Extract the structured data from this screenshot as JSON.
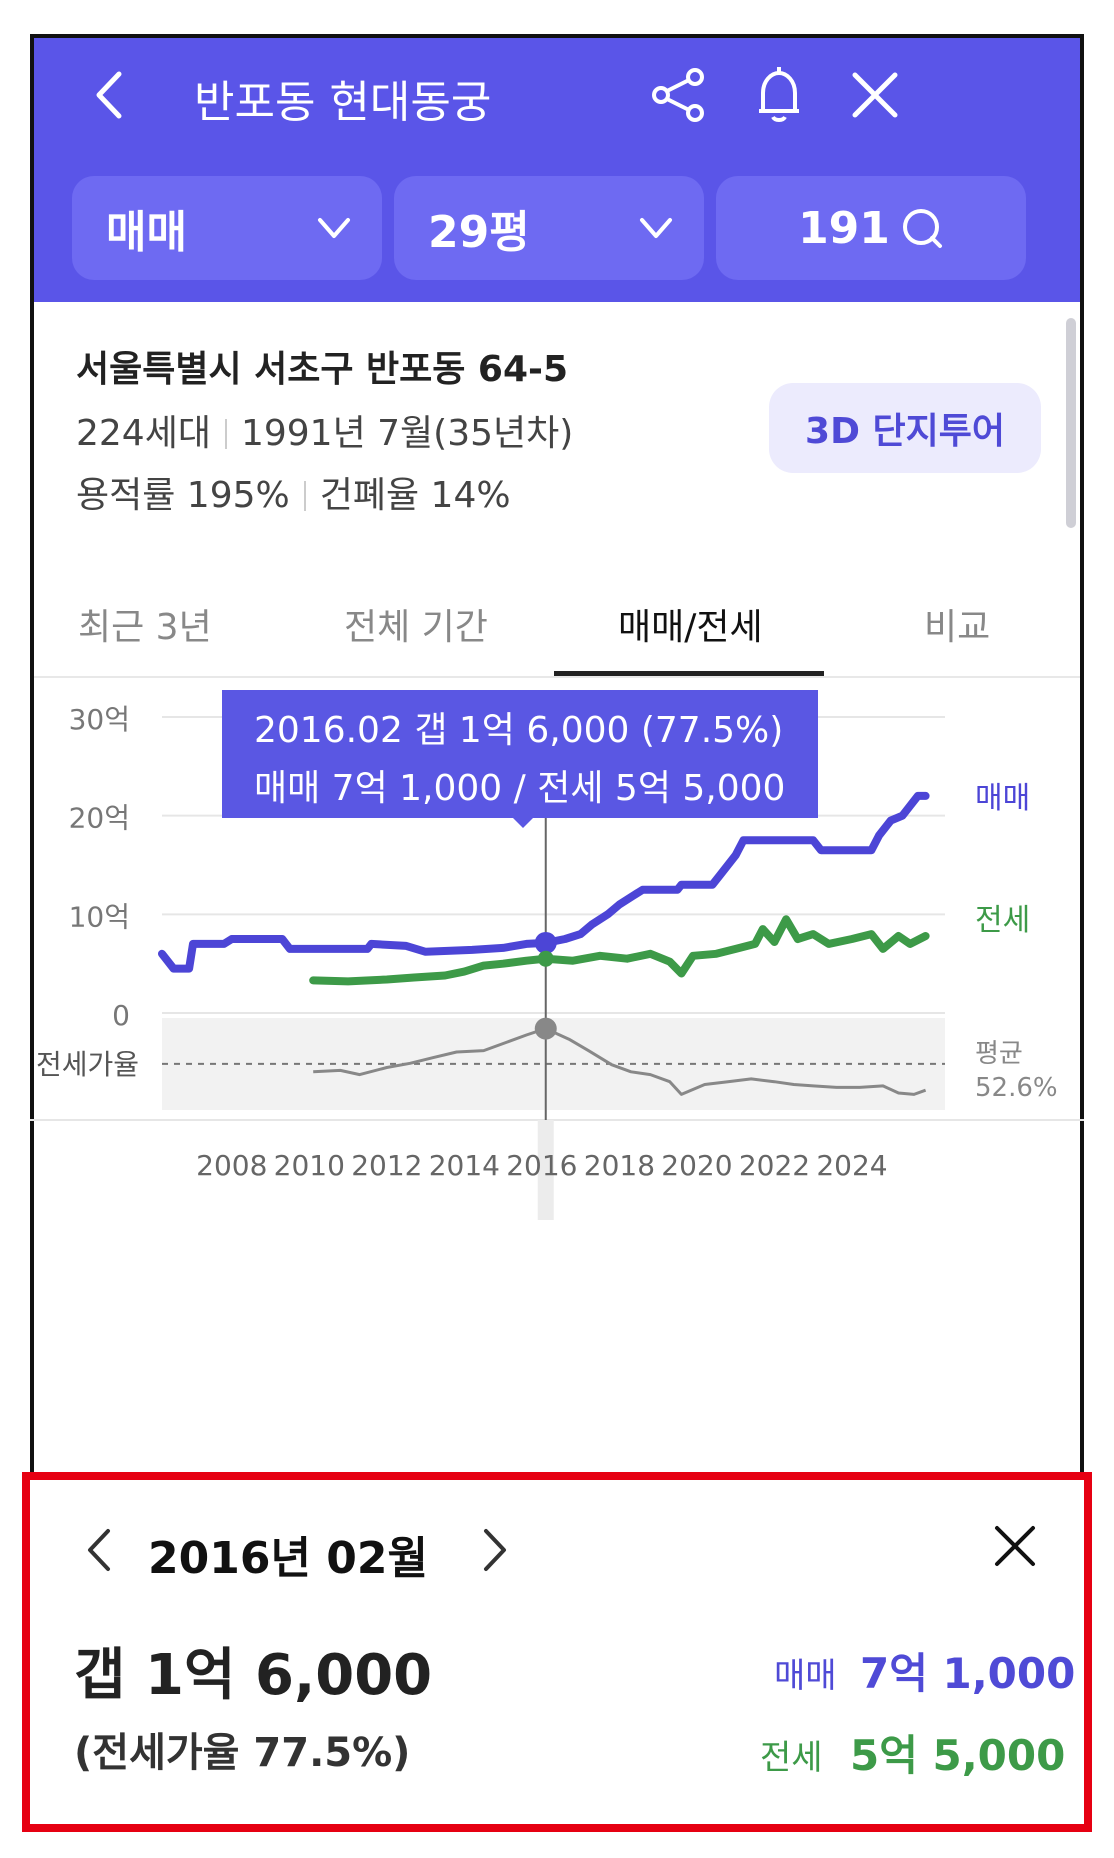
{
  "header": {
    "title": "반포동 현대동궁",
    "filters": [
      {
        "label": "매매"
      },
      {
        "label": "29평"
      },
      {
        "label": "191"
      }
    ]
  },
  "info": {
    "address": "서울특별시 서초구 반포동 64-5",
    "households": "224세대",
    "built": "1991년 7월(35년차)",
    "far": "용적률 195%",
    "bcr": "건폐율 14%",
    "tour_button": "3D 단지투어"
  },
  "tabs": [
    {
      "label": "최근 3년"
    },
    {
      "label": "전체 기간"
    },
    {
      "label": "매매/전세"
    },
    {
      "label": "비교"
    }
  ],
  "tooltip": {
    "line1": "2016.02  갭 1억 6,000 (77.5%)",
    "line2": "매매 7억 1,000 / 전세 5억 5,000"
  },
  "chart_data": {
    "type": "line",
    "y_ticks": [
      "30억",
      "20억",
      "10억",
      "0"
    ],
    "ylim": [
      0,
      30
    ],
    "x_ticks": [
      "2008",
      "2010",
      "2012",
      "2014",
      "2016",
      "2018",
      "2020",
      "2022",
      "2024"
    ],
    "xlim": [
      2006.2,
      2026.4
    ],
    "series": [
      {
        "name": "매매",
        "color": "#4c45d6",
        "points": [
          [
            2006.2,
            6
          ],
          [
            2006.5,
            4.5
          ],
          [
            2006.9,
            4.5
          ],
          [
            2007.0,
            7
          ],
          [
            2007.8,
            7
          ],
          [
            2008.0,
            7.5
          ],
          [
            2009.3,
            7.5
          ],
          [
            2009.5,
            6.5
          ],
          [
            2011.5,
            6.5
          ],
          [
            2011.6,
            7
          ],
          [
            2012.5,
            6.8
          ],
          [
            2013.0,
            6.2
          ],
          [
            2014.2,
            6.4
          ],
          [
            2015.0,
            6.6
          ],
          [
            2015.6,
            7
          ],
          [
            2016.1,
            7.1
          ],
          [
            2016.6,
            7.5
          ],
          [
            2017.0,
            8
          ],
          [
            2017.3,
            9
          ],
          [
            2017.7,
            10
          ],
          [
            2018.0,
            11
          ],
          [
            2018.4,
            12
          ],
          [
            2018.6,
            12.5
          ],
          [
            2019.5,
            12.5
          ],
          [
            2019.6,
            13
          ],
          [
            2020.4,
            13
          ],
          [
            2020.6,
            14
          ],
          [
            2021.0,
            16
          ],
          [
            2021.2,
            17.5
          ],
          [
            2023.0,
            17.5
          ],
          [
            2023.2,
            16.5
          ],
          [
            2024.5,
            16.5
          ],
          [
            2024.7,
            18
          ],
          [
            2025.0,
            19.5
          ],
          [
            2025.3,
            20
          ],
          [
            2025.5,
            21
          ],
          [
            2025.7,
            22
          ],
          [
            2025.9,
            22
          ]
        ]
      },
      {
        "name": "전세",
        "color": "#3d9a48",
        "points": [
          [
            2010.1,
            3.3
          ],
          [
            2011.0,
            3.2
          ],
          [
            2012.0,
            3.4
          ],
          [
            2012.7,
            3.6
          ],
          [
            2013.5,
            3.8
          ],
          [
            2014.0,
            4.2
          ],
          [
            2014.5,
            4.8
          ],
          [
            2015.0,
            5
          ],
          [
            2015.6,
            5.3
          ],
          [
            2016.1,
            5.5
          ],
          [
            2016.8,
            5.3
          ],
          [
            2017.5,
            5.8
          ],
          [
            2018.2,
            5.5
          ],
          [
            2018.8,
            6
          ],
          [
            2019.3,
            5.2
          ],
          [
            2019.6,
            4
          ],
          [
            2019.9,
            5.8
          ],
          [
            2020.5,
            6
          ],
          [
            2021.0,
            6.5
          ],
          [
            2021.5,
            7
          ],
          [
            2021.7,
            8.5
          ],
          [
            2022.0,
            7.2
          ],
          [
            2022.3,
            9.5
          ],
          [
            2022.6,
            7.5
          ],
          [
            2023.0,
            8
          ],
          [
            2023.4,
            7
          ],
          [
            2024.0,
            7.5
          ],
          [
            2024.5,
            8
          ],
          [
            2024.8,
            6.5
          ],
          [
            2025.2,
            7.8
          ],
          [
            2025.5,
            7
          ],
          [
            2025.9,
            7.8
          ]
        ]
      }
    ],
    "series_labels": {
      "sale": "매매",
      "jeonse": "전세"
    },
    "ratio_label": "전세가율",
    "ratio_avg_label": "평균",
    "ratio_avg_value": "52.6%",
    "ratio_points": [
      [
        2010.1,
        47
      ],
      [
        2010.8,
        48
      ],
      [
        2011.3,
        45
      ],
      [
        2012.0,
        50
      ],
      [
        2012.6,
        53
      ],
      [
        2013.2,
        57
      ],
      [
        2013.8,
        61
      ],
      [
        2014.5,
        62
      ],
      [
        2015.1,
        68
      ],
      [
        2015.6,
        73
      ],
      [
        2016.1,
        77.5
      ],
      [
        2016.7,
        70
      ],
      [
        2017.2,
        62
      ],
      [
        2017.8,
        52
      ],
      [
        2018.3,
        47
      ],
      [
        2018.8,
        45
      ],
      [
        2019.3,
        40
      ],
      [
        2019.6,
        31
      ],
      [
        2020.2,
        38
      ],
      [
        2020.8,
        40
      ],
      [
        2021.4,
        42
      ],
      [
        2022.0,
        40
      ],
      [
        2022.5,
        38
      ],
      [
        2023.0,
        37
      ],
      [
        2023.6,
        36
      ],
      [
        2024.2,
        36
      ],
      [
        2024.8,
        37
      ],
      [
        2025.2,
        32
      ],
      [
        2025.6,
        31
      ],
      [
        2025.9,
        34
      ]
    ],
    "selected": {
      "x": 2016.1,
      "sale": 7.1,
      "jeonse": 5.5,
      "ratio": 77.5
    }
  },
  "detail": {
    "period": "2016년 02월",
    "gap": "갭 1억 6,000",
    "ratio": "(전세가율 77.5%)",
    "sale_label": "매매",
    "sale_value": "7억 1,000",
    "jeonse_label": "전세",
    "jeonse_value": "5억 5,000"
  },
  "colors": {
    "brand": "#5a55e8",
    "sale": "#4c45d6",
    "jeonse": "#3d9a48",
    "highlight": "#e60012"
  }
}
